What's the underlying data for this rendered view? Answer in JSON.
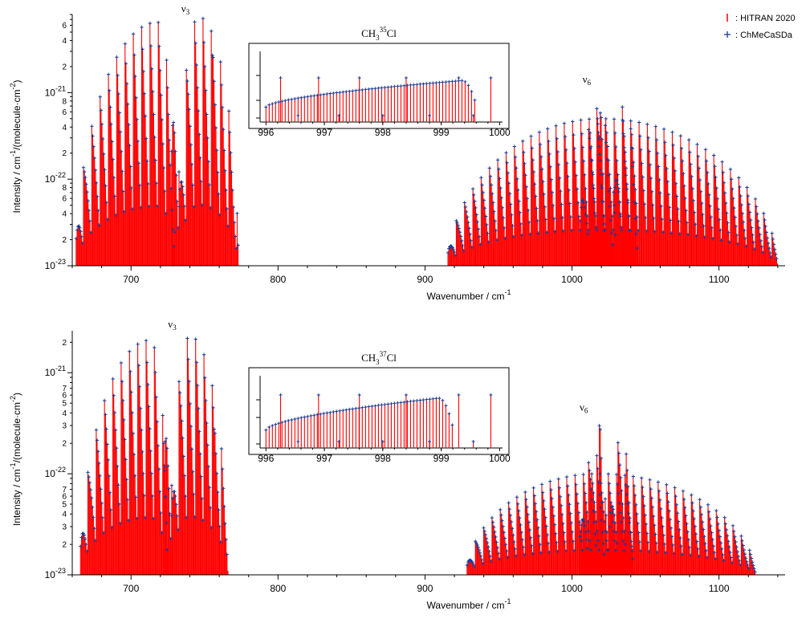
{
  "legend": [
    {
      "label": ": HITRAN 2020",
      "marker": "bar",
      "color": "#ff0000"
    },
    {
      "label": ": ChMeCaSDa",
      "marker": "plus",
      "color": "#1f3a93"
    }
  ],
  "colors": {
    "hitran": "#ff0000",
    "chmecasda": "#1f3a93",
    "axis": "#000000"
  },
  "chart_data": [
    {
      "type": "line",
      "title": "",
      "xlabel": "Wavenumber / cm",
      "xlabel_sup": "-1",
      "ylabel": "Intensity / cm",
      "ylabel_sup": "-1",
      "ylabel_mid": "/(molecule·cm",
      "ylabel_sup2": "-2",
      "ylabel_end": ")",
      "xlim": [
        660,
        1145
      ],
      "ylim": [
        1e-23,
        8e-21
      ],
      "yscale": "log",
      "x_ticks": [
        {
          "v": 700,
          "t": "700"
        },
        {
          "v": 800,
          "t": "800"
        },
        {
          "v": 900,
          "t": "900"
        },
        {
          "v": 1000,
          "t": "1000"
        },
        {
          "v": 1100,
          "t": "1100"
        }
      ],
      "y_major_ticks": [
        {
          "v": 1e-23,
          "m": "10",
          "e": "-23"
        },
        {
          "v": 1e-22,
          "m": "10",
          "e": "-22"
        },
        {
          "v": 1e-21,
          "m": "10",
          "e": "-21"
        }
      ],
      "y_minor_labels": [
        {
          "v": 2e-23,
          "t": "2"
        },
        {
          "v": 4e-23,
          "t": "4"
        },
        {
          "v": 6e-23,
          "t": "6"
        },
        {
          "v": 8e-23,
          "t": "8"
        },
        {
          "v": 2e-22,
          "t": "2"
        },
        {
          "v": 4e-22,
          "t": "4"
        },
        {
          "v": 6e-22,
          "t": "6"
        },
        {
          "v": 8e-22,
          "t": "8"
        },
        {
          "v": 2e-21,
          "t": "2"
        },
        {
          "v": 4e-21,
          "t": "4"
        },
        {
          "v": 6e-21,
          "t": "6"
        }
      ],
      "bands": [
        {
          "name": "ν3",
          "label_base": "ν",
          "label_sub": "3",
          "label_x": 737,
          "label_y": 8.5e-21
        },
        {
          "name": "ν6",
          "label_base": "ν",
          "label_sub": "6",
          "label_x": 1010,
          "label_y": 1.3e-21
        }
      ],
      "envelopes": [
        {
          "x_start": 662,
          "x_end": 730,
          "peak_x": 718,
          "peak_y": 6.5e-21
        },
        {
          "x_start": 732,
          "x_end": 773,
          "peak_x": 746,
          "peak_y": 7.5e-21
        },
        {
          "x_start": 727,
          "x_end": 733,
          "peak_x": 730,
          "peak_y": 3.2e-21
        },
        {
          "x_start": 915,
          "x_end": 1140,
          "peak_x": 1020,
          "peak_y": 5e-22
        },
        {
          "x_start": 1005,
          "x_end": 1030,
          "peak_x": 1017,
          "peak_y": 6.5e-22
        },
        {
          "x_start": 1028,
          "x_end": 1045,
          "peak_x": 1035,
          "peak_y": 7e-22
        },
        {
          "x_start": 1018,
          "x_end": 1022,
          "peak_x": 1020,
          "peak_y": 1.3e-21
        }
      ],
      "inset": {
        "title_base": "CH",
        "title_sub": "3",
        "title_sup": "35",
        "title_end": "Cl",
        "xlim": [
          995.9,
          1000.05
        ],
        "x_ticks": [
          {
            "v": 996,
            "t": "996"
          },
          {
            "v": 997,
            "t": "997"
          },
          {
            "v": 998,
            "t": "998"
          },
          {
            "v": 999,
            "t": "999"
          },
          {
            "v": 1000,
            "t": "1000"
          }
        ],
        "band_head": 999.6
      }
    },
    {
      "type": "line",
      "title": "",
      "xlabel": "Wavenumber / cm",
      "xlabel_sup": "-1",
      "ylabel": "Intensity / cm",
      "ylabel_sup": "-1",
      "ylabel_mid": "/(molecule·cm",
      "ylabel_sup2": "-2",
      "ylabel_end": ")",
      "xlim": [
        660,
        1145
      ],
      "ylim": [
        1e-23,
        2.6e-21
      ],
      "yscale": "log",
      "x_ticks": [
        {
          "v": 700,
          "t": "700"
        },
        {
          "v": 800,
          "t": "800"
        },
        {
          "v": 900,
          "t": "900"
        },
        {
          "v": 1000,
          "t": "1000"
        },
        {
          "v": 1100,
          "t": "1100"
        }
      ],
      "y_major_ticks": [
        {
          "v": 1e-23,
          "m": "10",
          "e": "-23"
        },
        {
          "v": 1e-22,
          "m": "10",
          "e": "-22"
        },
        {
          "v": 1e-21,
          "m": "10",
          "e": "-21"
        }
      ],
      "y_minor_labels": [
        {
          "v": 2e-23,
          "t": "2"
        },
        {
          "v": 3e-23,
          "t": "3"
        },
        {
          "v": 4e-23,
          "t": "4"
        },
        {
          "v": 5e-23,
          "t": "5"
        },
        {
          "v": 6e-23,
          "t": "6"
        },
        {
          "v": 7e-23,
          "t": "7"
        },
        {
          "v": 2e-22,
          "t": "2"
        },
        {
          "v": 3e-22,
          "t": "3"
        },
        {
          "v": 4e-22,
          "t": "4"
        },
        {
          "v": 5e-22,
          "t": "5"
        },
        {
          "v": 6e-22,
          "t": "6"
        },
        {
          "v": 7e-22,
          "t": "7"
        },
        {
          "v": 2e-21,
          "t": "2"
        }
      ],
      "bands": [
        {
          "name": "ν3",
          "label_base": "ν",
          "label_sub": "3",
          "label_x": 728,
          "label_y": 2.8e-21
        },
        {
          "name": "ν6",
          "label_base": "ν",
          "label_sub": "6",
          "label_x": 1008,
          "label_y": 4.2e-22
        }
      ],
      "envelopes": [
        {
          "x_start": 665,
          "x_end": 725,
          "peak_x": 713,
          "peak_y": 2.1e-21
        },
        {
          "x_start": 727,
          "x_end": 766,
          "peak_x": 740,
          "peak_y": 2.3e-21
        },
        {
          "x_start": 722,
          "x_end": 728,
          "peak_x": 725,
          "peak_y": 1.1e-21
        },
        {
          "x_start": 928,
          "x_end": 1125,
          "peak_x": 1018,
          "peak_y": 1e-22
        },
        {
          "x_start": 1005,
          "x_end": 1025,
          "peak_x": 1015,
          "peak_y": 1.6e-22
        },
        {
          "x_start": 1025,
          "x_end": 1042,
          "peak_x": 1033,
          "peak_y": 2.2e-22
        },
        {
          "x_start": 1018,
          "x_end": 1021,
          "peak_x": 1019,
          "peak_y": 4e-22
        }
      ],
      "inset": {
        "title_base": "CH",
        "title_sub": "3",
        "title_sup": "37",
        "title_end": "Cl",
        "xlim": [
          995.9,
          1000.05
        ],
        "x_ticks": [
          {
            "v": 996,
            "t": "996"
          },
          {
            "v": 997,
            "t": "997"
          },
          {
            "v": 998,
            "t": "998"
          },
          {
            "v": 999,
            "t": "999"
          },
          {
            "v": 1000,
            "t": "1000"
          }
        ],
        "band_head": 999.2
      }
    }
  ]
}
